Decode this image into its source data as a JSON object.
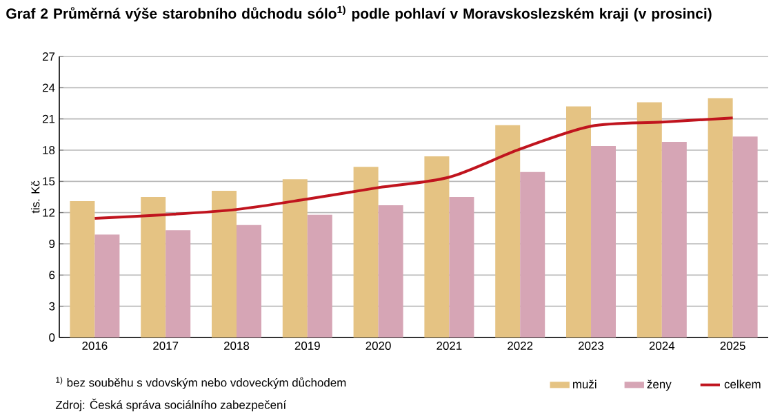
{
  "chart_data": {
    "type": "bar",
    "title": "Graf 2 Průměrná výše starobního důchodu sólo$^{1)}$ podle pohlaví v Moravskoslezském kraji (v prosinci)",
    "ylabel": "tis. Kč",
    "categories": [
      "2016",
      "2017",
      "2018",
      "2019",
      "2020",
      "2021",
      "2022",
      "2023",
      "2024",
      "2025"
    ],
    "series": [
      {
        "name": "muži",
        "color": "#e5c383",
        "values": [
          13.1,
          13.5,
          14.1,
          15.2,
          16.4,
          17.4,
          20.4,
          22.2,
          22.6,
          23.0
        ]
      },
      {
        "name": "ženy",
        "color": "#d6a5b5",
        "values": [
          9.9,
          10.3,
          10.8,
          11.8,
          12.7,
          13.5,
          15.9,
          18.4,
          18.8,
          19.3
        ]
      },
      {
        "name": "celkem",
        "type": "line",
        "color": "#c0141e",
        "values": [
          11.45,
          11.8,
          12.3,
          13.3,
          14.4,
          15.4,
          18.1,
          20.3,
          20.7,
          21.1
        ]
      }
    ],
    "ylim": [
      0,
      27
    ],
    "yticks": [
      0,
      3,
      6,
      9,
      12,
      15,
      18,
      21,
      24,
      27
    ],
    "grid": "y",
    "legend": "bottom right",
    "annotations": [
      "$^{1)}$ bez souběhu s vdovským nebo vdoveckým důchodem",
      "Zdroj: Česká správa sociálního zabezpečení"
    ]
  }
}
